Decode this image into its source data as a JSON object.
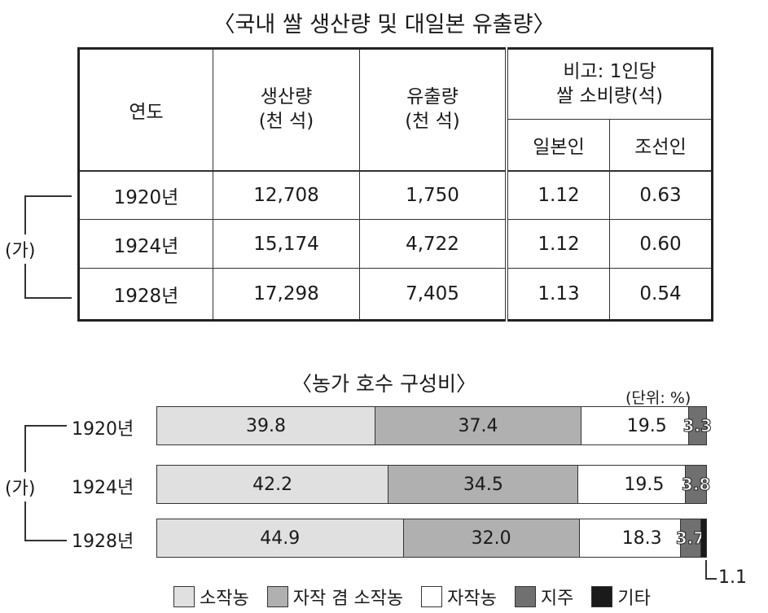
{
  "table_title": "〈국내 쌀 생산량 및 대일본 유출량〉",
  "table": {
    "headers": {
      "year": "연도",
      "production": [
        "생산량",
        "(천 석)"
      ],
      "export": [
        "유출량",
        "(천 석)"
      ],
      "note": [
        "비고: 1인당",
        "쌀 소비량(석)"
      ],
      "japanese": "일본인",
      "korean": "조선인"
    },
    "rows": [
      {
        "year": "1920년",
        "production": "12,708",
        "export": "1,750",
        "japanese": "1.12",
        "korean": "0.63"
      },
      {
        "year": "1924년",
        "production": "15,174",
        "export": "4,722",
        "japanese": "1.12",
        "korean": "0.60"
      },
      {
        "year": "1928년",
        "production": "17,298",
        "export": "7,405",
        "japanese": "1.13",
        "korean": "0.54"
      }
    ]
  },
  "bracket_label": "(가)",
  "chart_data": {
    "type": "bar",
    "stacked": true,
    "orientation": "horizontal",
    "title": "〈농가 호수 구성비〉",
    "unit": "(단위: %)",
    "categories": [
      "1920년",
      "1924년",
      "1928년"
    ],
    "series": [
      {
        "name": "소작농",
        "color": "#e0e0e0",
        "values": [
          39.8,
          42.2,
          44.9
        ],
        "labels": [
          "39.8",
          "42.2",
          "44.9"
        ]
      },
      {
        "name": "자작 겸 소작농",
        "color": "#b0b0b0",
        "values": [
          37.4,
          34.5,
          32.0
        ],
        "labels": [
          "37.4",
          "34.5",
          "32.0"
        ]
      },
      {
        "name": "자작농",
        "color": "#ffffff",
        "values": [
          19.5,
          19.5,
          18.3
        ],
        "labels": [
          "19.5",
          "19.5",
          "18.3"
        ]
      },
      {
        "name": "지주",
        "color": "#707070",
        "values": [
          3.3,
          3.8,
          3.7
        ],
        "labels": [
          "3.3",
          "3.8",
          "3.7"
        ]
      },
      {
        "name": "기타",
        "color": "#1a1a1a",
        "values": [
          0,
          0,
          1.1
        ],
        "labels": [
          "",
          "",
          "1.1"
        ]
      }
    ],
    "xlim": [
      0,
      100
    ]
  }
}
